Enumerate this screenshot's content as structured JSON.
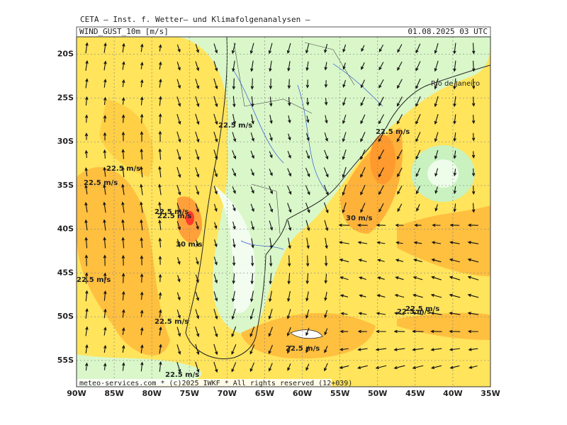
{
  "header": "CETA – Inst. f. Wetter– und Klimafolgenanalysen –",
  "map": {
    "variable": "WIND_GUST_10m [m/s]",
    "valid_time": "01.08.2025 03 UTC",
    "xlim": [
      -90,
      -35
    ],
    "ylim": [
      -18,
      -58
    ],
    "xticks": [
      {
        "value": -90,
        "label": "90W"
      },
      {
        "value": -85,
        "label": "85W"
      },
      {
        "value": -80,
        "label": "80W"
      },
      {
        "value": -75,
        "label": "75W"
      },
      {
        "value": -70,
        "label": "70W"
      },
      {
        "value": -65,
        "label": "65W"
      },
      {
        "value": -60,
        "label": "60W"
      },
      {
        "value": -55,
        "label": "55W"
      },
      {
        "value": -50,
        "label": "50W"
      },
      {
        "value": -45,
        "label": "45W"
      },
      {
        "value": -40,
        "label": "40W"
      },
      {
        "value": -35,
        "label": "35W"
      }
    ],
    "yticks": [
      {
        "value": -20,
        "label": "20S"
      },
      {
        "value": -25,
        "label": "25S"
      },
      {
        "value": -30,
        "label": "30S"
      },
      {
        "value": -35,
        "label": "35S"
      },
      {
        "value": -40,
        "label": "40S"
      },
      {
        "value": -45,
        "label": "45S"
      },
      {
        "value": -50,
        "label": "50S"
      },
      {
        "value": -55,
        "label": "55S"
      }
    ],
    "place_label": "Rio de Janeiro",
    "contour_labels": [
      "22.5 m/s",
      "22.5 m/s",
      "22.5 m/s",
      "22.5 m/s",
      "22.5 m/s",
      "22.5 m/s",
      "30 m/s",
      "30 m/s",
      "22.5 m/s",
      "22.5 m/s",
      "22.5 m/s",
      "22.5 m/s",
      "22.5 m/s",
      "22.5 m/s"
    ],
    "footer": "meteo-services.com * (c)2025 IWKF * All rights reserved (12+039)"
  }
}
